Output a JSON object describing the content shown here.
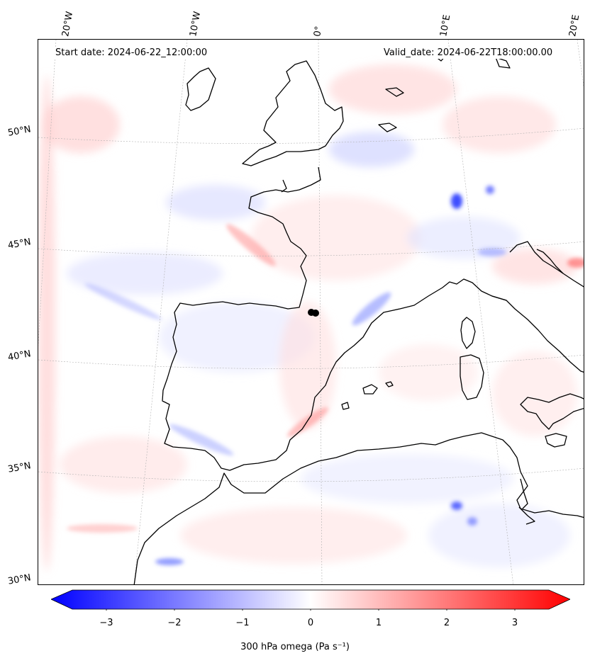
{
  "header": {
    "start_date": "Start date: 2024-06-22_12:00:00",
    "valid_date": "Valid_date: 2024-06-22T18:00:00.00"
  },
  "axes": {
    "longitude_labels": [
      "20°W",
      "10°W",
      "0°",
      "10°E",
      "20°E"
    ],
    "latitude_labels": [
      "50°N",
      "45°N",
      "40°N",
      "35°N",
      "30°N"
    ]
  },
  "colorbar": {
    "label": "300 hPa omega (Pa s⁻¹)",
    "ticks": [
      "−3",
      "−2",
      "−1",
      "0",
      "1",
      "2",
      "3"
    ],
    "tick_values": [
      -3,
      -2,
      -1,
      0,
      1,
      2,
      3
    ],
    "range": [
      -3.5,
      3.5
    ],
    "colormap": "bwr",
    "extend": "both",
    "colors": {
      "negative": "#0000ff",
      "zero": "#ffffff",
      "positive": "#ff0000"
    }
  },
  "map": {
    "region": "Western Europe / Iberia / western Mediterranean",
    "gridline_color": "#b0b0b0",
    "coastline_color": "#000000"
  }
}
